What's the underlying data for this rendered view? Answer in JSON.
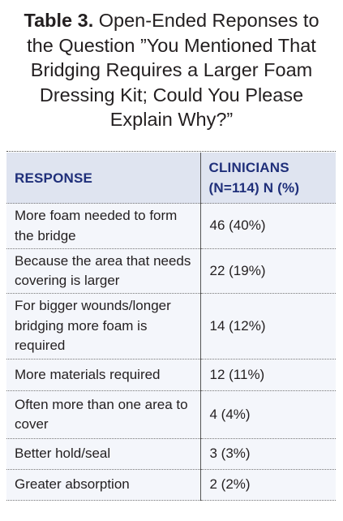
{
  "table": {
    "label": "Table 3.",
    "caption": "Open-Ended Reponses to the Question ”You Mentioned That Bridging Requires a Larger Foam Dressing Kit; Could You Please Explain Why?”",
    "headers": {
      "response": "RESPONSE",
      "clinicians": "CLINICIANS (N=114) N (%)"
    },
    "rows": [
      {
        "response": "More foam needed to form the bridge",
        "value": "46 (40%)"
      },
      {
        "response": "Because the area that needs covering is larger",
        "value": "22 (19%)"
      },
      {
        "response": "For bigger wounds/longer bridging more foam is required",
        "value": "14 (12%)"
      },
      {
        "response": "More materials required",
        "value": "12 (11%)"
      },
      {
        "response": "Often more than one area to cover",
        "value": "4 (4%)"
      },
      {
        "response": "Better hold/seal",
        "value": "3 (3%)"
      },
      {
        "response": "Greater absorption",
        "value": "2 (2%)"
      }
    ]
  },
  "colors": {
    "header_text": "#1f2f7a",
    "header_bg": "#dfe4f0",
    "row_bg": "#f4f6fb",
    "body_text": "#231f20"
  }
}
